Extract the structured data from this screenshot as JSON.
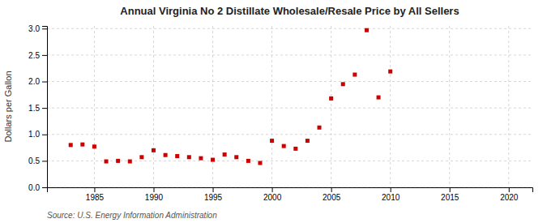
{
  "chart_data": {
    "type": "scatter",
    "title": "Annual Virginia No 2 Distillate Wholesale/Resale Price by All Sellers",
    "y_label": "Dollars per Gallon",
    "source": "Source: U.S. Energy Information Administration",
    "color": "#cc0000",
    "marker": "square",
    "grid": true,
    "xlim": [
      1981,
      2022
    ],
    "ylim": [
      0.0,
      3.05
    ],
    "xticks": [
      1985,
      1990,
      1995,
      2000,
      2005,
      2010,
      2015,
      2020
    ],
    "yticks": [
      {
        "value": 0.0,
        "label": "0.0"
      },
      0.5,
      {
        "value": 1.0,
        "label": "1.0"
      },
      1.5,
      {
        "value": 2.0,
        "label": "2.0"
      },
      2.5,
      {
        "value": 3.0,
        "label": "3.0"
      }
    ],
    "x": [
      1983,
      1984,
      1985,
      1986,
      1987,
      1988,
      1989,
      1990,
      1991,
      1992,
      1993,
      1994,
      1995,
      1996,
      1997,
      1998,
      1999,
      2000,
      2001,
      2002,
      2003,
      2004,
      2005,
      2006,
      2007,
      2008,
      2009,
      2010
    ],
    "values": [
      0.8,
      0.81,
      0.77,
      0.49,
      0.5,
      0.49,
      0.57,
      0.7,
      0.61,
      0.59,
      0.57,
      0.55,
      0.52,
      0.62,
      0.57,
      0.5,
      0.46,
      0.88,
      0.78,
      0.73,
      0.88,
      1.13,
      1.68,
      1.95,
      2.13,
      2.97,
      1.7,
      2.19
    ]
  }
}
